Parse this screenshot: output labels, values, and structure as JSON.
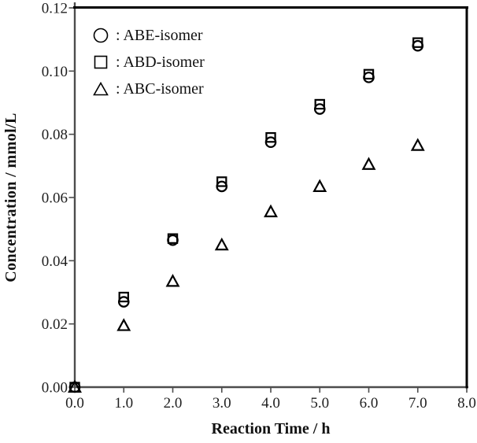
{
  "chart_data": {
    "type": "scatter",
    "title": "",
    "xlabel": "Reaction Time / h",
    "ylabel": "Concentration / mmol/L",
    "xlim": [
      0.0,
      8.0
    ],
    "ylim": [
      0.0,
      0.12
    ],
    "grid": false,
    "legend_position": "top-left-inside",
    "x_ticks": [
      0,
      1,
      2,
      3,
      4,
      5,
      6,
      7,
      8
    ],
    "x_tick_labels": [
      "0.0",
      "1.0",
      "2.0",
      "3.0",
      "4.0",
      "5.0",
      "6.0",
      "7.0",
      "8.0"
    ],
    "y_ticks": [
      0.0,
      0.02,
      0.04,
      0.06,
      0.08,
      0.1,
      0.12
    ],
    "y_tick_labels": [
      "0.00",
      "0.02",
      "0.04",
      "0.06",
      "0.08",
      "0.10",
      "0.12"
    ],
    "x": [
      0,
      1,
      2,
      3,
      4,
      5,
      6,
      7
    ],
    "series": [
      {
        "name": "ABE-isomer",
        "legend_label": ": ABE-isomer",
        "marker": "circle",
        "values": [
          0.0,
          0.027,
          0.0465,
          0.0635,
          0.0775,
          0.088,
          0.098,
          0.108
        ]
      },
      {
        "name": "ABD-isomer",
        "legend_label": ": ABD-isomer",
        "marker": "square",
        "values": [
          0.0,
          0.0285,
          0.047,
          0.065,
          0.079,
          0.0895,
          0.099,
          0.109
        ]
      },
      {
        "name": "ABC-isomer",
        "legend_label": ": ABC-isomer",
        "marker": "triangle",
        "values": [
          0.0,
          0.0195,
          0.0335,
          0.045,
          0.0555,
          0.0635,
          0.0705,
          0.0765
        ]
      }
    ],
    "marker_color": "#000000",
    "frame_color": "#000000",
    "axis_color": "#4d4d4d"
  }
}
